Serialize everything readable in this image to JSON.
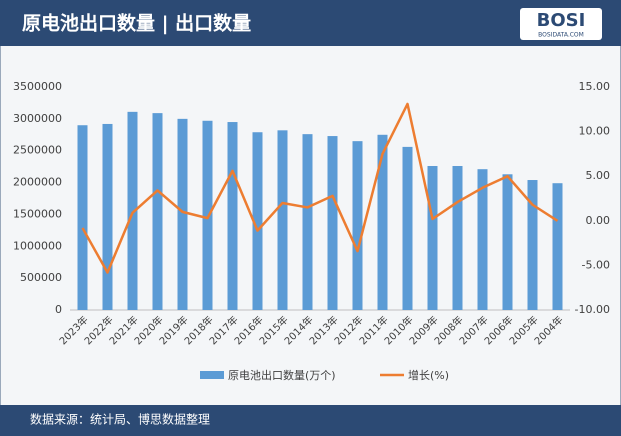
{
  "chart_data": {
    "type": "bar-line",
    "title": "原电池出口数量 | 出口数量",
    "logo": "BOSI",
    "logo_subtitle": "BOSIDATA.COM",
    "source": "数据来源：统计局、博思数据整理",
    "categories": [
      "2023年",
      "2022年",
      "2021年",
      "2020年",
      "2019年",
      "2018年",
      "2017年",
      "2016年",
      "2015年",
      "2014年",
      "2013年",
      "2012年",
      "2011年",
      "2010年",
      "2009年",
      "2008年",
      "2007年",
      "2006年",
      "2005年",
      "2004年"
    ],
    "series": [
      {
        "name": "原电池出口数量(万个)",
        "type": "bar",
        "color": "#5b9bd5",
        "values": [
          2900000,
          2920000,
          3110000,
          3090000,
          3000000,
          2970000,
          2950000,
          2790000,
          2820000,
          2760000,
          2730000,
          2650000,
          2750000,
          2560000,
          2260000,
          2260000,
          2210000,
          2130000,
          2040000,
          1990000
        ]
      },
      {
        "name": "增长(%)",
        "type": "line",
        "axis": "y2",
        "color": "#ed7d31",
        "values": [
          -0.8,
          -5.8,
          0.9,
          3.4,
          1.0,
          0.3,
          5.6,
          -1.1,
          2.0,
          1.5,
          2.8,
          -3.4,
          7.5,
          13.1,
          0.2,
          2.1,
          3.7,
          5.0,
          1.8,
          0.0
        ]
      }
    ],
    "ylim": [
      0,
      3500000
    ],
    "yticks": [
      0,
      500000,
      1000000,
      1500000,
      2000000,
      2500000,
      3000000,
      3500000
    ],
    "y2lim": [
      -10,
      15
    ],
    "y2ticks": [
      {
        "value": -10,
        "label": "-10.00"
      },
      {
        "value": -5,
        "label": "-5.00"
      },
      {
        "value": 0,
        "label": "0.00"
      },
      {
        "value": 5,
        "label": "5.00"
      },
      {
        "value": 10,
        "label": "10.00"
      },
      {
        "value": 15,
        "label": "15.00"
      }
    ],
    "grid": false,
    "legend": "bottom"
  }
}
